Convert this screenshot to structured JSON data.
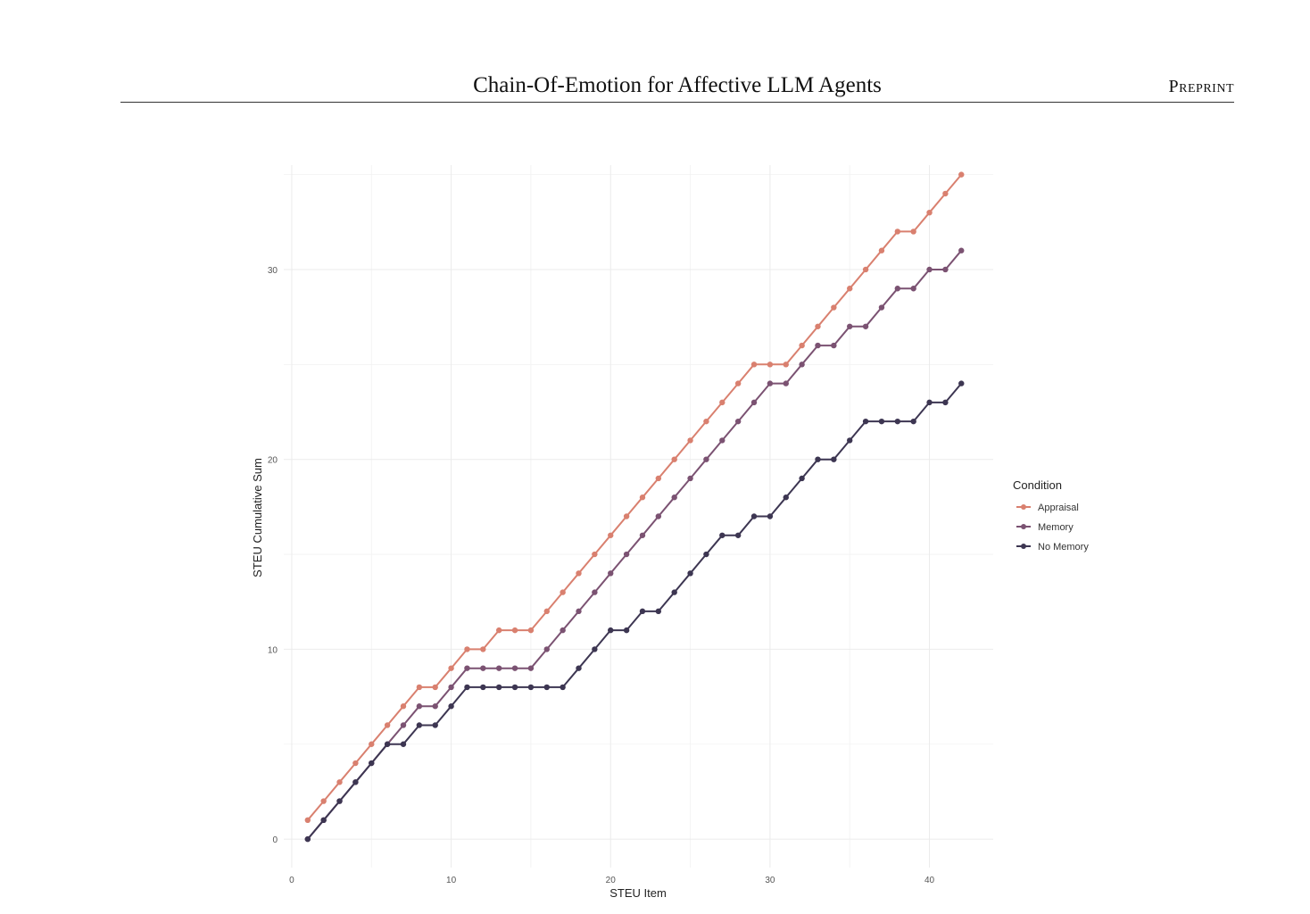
{
  "header": {
    "title": "Chain-Of-Emotion for Affective LLM Agents",
    "tag": "Preprint"
  },
  "chart_data": {
    "type": "line",
    "xlabel": "STEU Item",
    "ylabel": "STEU Cumulative Sum",
    "xlim": [
      -0.5,
      44
    ],
    "ylim": [
      -1.5,
      35.5
    ],
    "x_ticks": [
      0,
      10,
      20,
      30,
      40
    ],
    "y_ticks": [
      0,
      10,
      20,
      30
    ],
    "grid": true,
    "legend": {
      "title": "Condition",
      "position": "right"
    },
    "x": [
      1,
      2,
      3,
      4,
      5,
      6,
      7,
      8,
      9,
      10,
      11,
      12,
      13,
      14,
      15,
      16,
      17,
      18,
      19,
      20,
      21,
      22,
      23,
      24,
      25,
      26,
      27,
      28,
      29,
      30,
      31,
      32,
      33,
      34,
      35,
      36,
      37,
      38,
      39,
      40,
      41,
      42
    ],
    "series": [
      {
        "name": "Appraisal",
        "color": "#d9806f",
        "values": [
          1,
          2,
          3,
          4,
          5,
          6,
          7,
          8,
          8,
          9,
          10,
          10,
          11,
          11,
          11,
          12,
          13,
          14,
          15,
          16,
          17,
          18,
          19,
          20,
          21,
          22,
          23,
          24,
          25,
          25,
          25,
          26,
          27,
          28,
          29,
          30,
          31,
          32,
          32,
          33,
          34,
          35
        ]
      },
      {
        "name": "Memory",
        "color": "#7b5272",
        "values": [
          0,
          1,
          2,
          3,
          4,
          5,
          6,
          7,
          7,
          8,
          9,
          9,
          9,
          9,
          9,
          10,
          11,
          12,
          13,
          14,
          15,
          16,
          17,
          18,
          19,
          20,
          21,
          22,
          23,
          24,
          24,
          25,
          26,
          26,
          27,
          27,
          28,
          29,
          29,
          30,
          30,
          31
        ]
      },
      {
        "name": "No Memory",
        "color": "#3d3652",
        "values": [
          0,
          1,
          2,
          3,
          4,
          5,
          5,
          6,
          6,
          7,
          8,
          8,
          8,
          8,
          8,
          8,
          8,
          9,
          10,
          11,
          11,
          12,
          12,
          13,
          14,
          15,
          16,
          16,
          17,
          17,
          18,
          19,
          20,
          20,
          21,
          22,
          22,
          22,
          22,
          23,
          23,
          24
        ]
      }
    ]
  }
}
